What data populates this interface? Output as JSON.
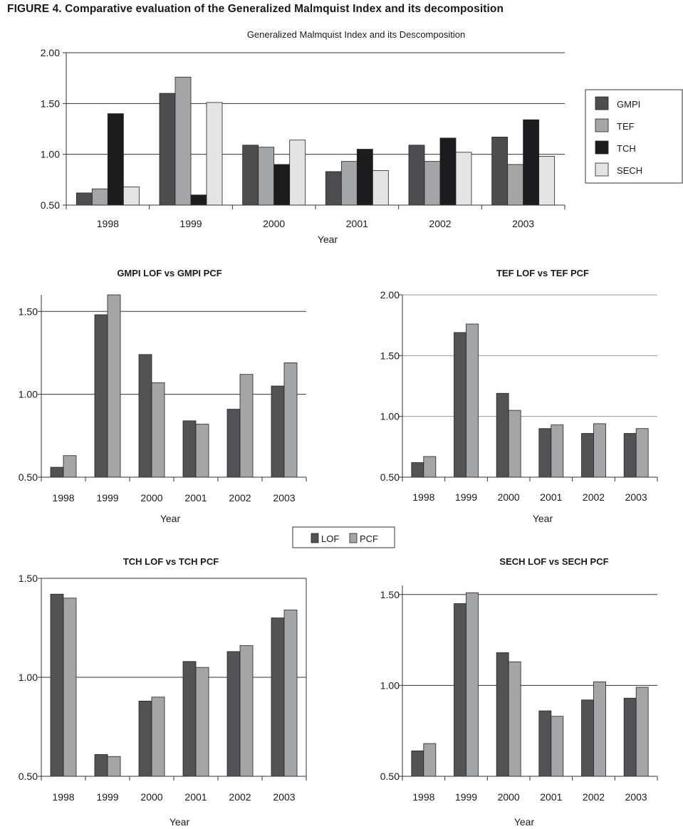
{
  "figure": {
    "title": "FIGURE 4. Comparative evaluation of the Generalized Malmquist Index and its decomposition"
  },
  "colors": {
    "GMPI": "#4d4d4f",
    "TEF": "#a4a5a7",
    "TCH": "#1c1c1e",
    "SECH": "#e4e4e4",
    "LOF": "#535356",
    "PCF": "#a4a5a7"
  },
  "pair_legend": {
    "items": [
      "LOF",
      "PCF"
    ]
  },
  "chart_data": [
    {
      "type": "bar",
      "title": "Generalized Malmquist Index and its Descomposition",
      "xlabel": "Year",
      "ylabel": "",
      "categories": [
        "1998",
        "1999",
        "2000",
        "2001",
        "2002",
        "2003"
      ],
      "ylim": [
        0.5,
        2.0
      ],
      "yticks": [
        "0.50",
        "1.00",
        "1.50",
        "2.00"
      ],
      "ytick_values": [
        0.5,
        1.0,
        1.5,
        2.0
      ],
      "grid": "horizontal",
      "legend": "right",
      "series": [
        {
          "name": "GMPI",
          "values": [
            0.62,
            1.6,
            1.09,
            0.83,
            1.09,
            1.17
          ]
        },
        {
          "name": "TEF",
          "values": [
            0.66,
            1.76,
            1.07,
            0.93,
            0.93,
            0.9
          ]
        },
        {
          "name": "TCH",
          "values": [
            1.4,
            0.6,
            0.9,
            1.05,
            1.16,
            1.34
          ]
        },
        {
          "name": "SECH",
          "values": [
            0.68,
            1.51,
            1.14,
            0.84,
            1.02,
            0.98
          ]
        }
      ]
    },
    {
      "type": "bar",
      "title": "GMPI LOF vs GMPI PCF",
      "xlabel": "Year",
      "ylabel": "",
      "categories": [
        "1998",
        "1999",
        "2000",
        "2001",
        "2002",
        "2003"
      ],
      "ylim": [
        0.5,
        1.6
      ],
      "yticks": [
        "0.50",
        "1.00",
        "1.50"
      ],
      "ytick_values": [
        0.5,
        1.0,
        1.5
      ],
      "grid": "horizontal",
      "series": [
        {
          "name": "LOF",
          "values": [
            0.56,
            1.48,
            1.24,
            0.84,
            0.91,
            1.05
          ]
        },
        {
          "name": "PCF",
          "values": [
            0.63,
            1.6,
            1.07,
            0.82,
            1.12,
            1.19
          ]
        }
      ]
    },
    {
      "type": "bar",
      "title": "TEF LOF vs TEF PCF",
      "xlabel": "Year",
      "ylabel": "",
      "categories": [
        "1998",
        "1999",
        "2000",
        "2001",
        "2002",
        "2003"
      ],
      "ylim": [
        0.5,
        2.0
      ],
      "yticks": [
        "0.50",
        "1.00",
        "1.50",
        "2.00"
      ],
      "ytick_values": [
        0.5,
        1.0,
        1.5,
        2.0
      ],
      "grid": "horizontal",
      "series": [
        {
          "name": "LOF",
          "values": [
            0.62,
            1.69,
            1.19,
            0.9,
            0.86,
            0.86
          ]
        },
        {
          "name": "PCF",
          "values": [
            0.67,
            1.76,
            1.05,
            0.93,
            0.94,
            0.9
          ]
        }
      ]
    },
    {
      "type": "bar",
      "title": "TCH LOF vs TCH PCF",
      "xlabel": "Year",
      "ylabel": "",
      "categories": [
        "1998",
        "1999",
        "2000",
        "2001",
        "2002",
        "2003"
      ],
      "ylim": [
        0.5,
        1.5
      ],
      "yticks": [
        "0.50",
        "1.00",
        "1.50"
      ],
      "ytick_values": [
        0.5,
        1.0,
        1.5
      ],
      "grid": "horizontal",
      "series": [
        {
          "name": "LOF",
          "values": [
            1.42,
            0.61,
            0.88,
            1.08,
            1.13,
            1.3
          ]
        },
        {
          "name": "PCF",
          "values": [
            1.4,
            0.6,
            0.9,
            1.05,
            1.16,
            1.34
          ]
        }
      ]
    },
    {
      "type": "bar",
      "title": "SECH LOF vs SECH PCF",
      "xlabel": "Year",
      "ylabel": "",
      "categories": [
        "1998",
        "1999",
        "2000",
        "2001",
        "2002",
        "2003"
      ],
      "ylim": [
        0.5,
        1.55
      ],
      "yticks": [
        "0.50",
        "1.00",
        "1.50"
      ],
      "ytick_values": [
        0.5,
        1.0,
        1.5
      ],
      "grid": "horizontal",
      "series": [
        {
          "name": "LOF",
          "values": [
            0.64,
            1.45,
            1.18,
            0.86,
            0.92,
            0.93
          ]
        },
        {
          "name": "PCF",
          "values": [
            0.68,
            1.51,
            1.13,
            0.83,
            1.02,
            0.99
          ]
        }
      ]
    }
  ]
}
